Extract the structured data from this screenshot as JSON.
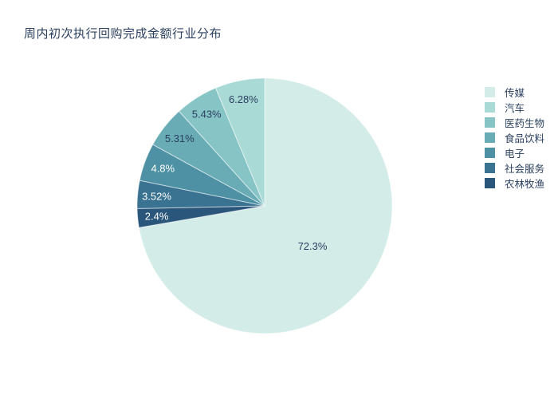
{
  "chart_data": {
    "type": "pie",
    "title": "周内初次执行回购完成金额行业分布",
    "labels": [
      "传媒",
      "汽车",
      "医药生物",
      "食品饮料",
      "电子",
      "社会服务",
      "农林牧渔"
    ],
    "values": [
      72.3,
      6.28,
      5.43,
      5.31,
      4.8,
      3.52,
      2.4
    ],
    "slice_text": [
      "72.3%",
      "6.28%",
      "5.43%",
      "5.31%",
      "4.8%",
      "3.52%",
      "2.4%"
    ],
    "colors": [
      "#d3ece8",
      "#a9dad6",
      "#87c4c6",
      "#69acb5",
      "#4e91a5",
      "#3a7391",
      "#2b567b"
    ],
    "slice_text_colors": [
      "#2a3f5f",
      "#2a3f5f",
      "#2a3f5f",
      "#2a3f5f",
      "#ffffff",
      "#ffffff",
      "#ffffff"
    ],
    "title_color": "#2a3f5f",
    "legend_text_color": "#2a3f5f",
    "legend_position": "right",
    "start_angle": "12-oclock",
    "direction": "clockwise",
    "draw_order_clockwise_from_top": [
      0,
      6,
      5,
      4,
      3,
      2,
      1
    ]
  }
}
